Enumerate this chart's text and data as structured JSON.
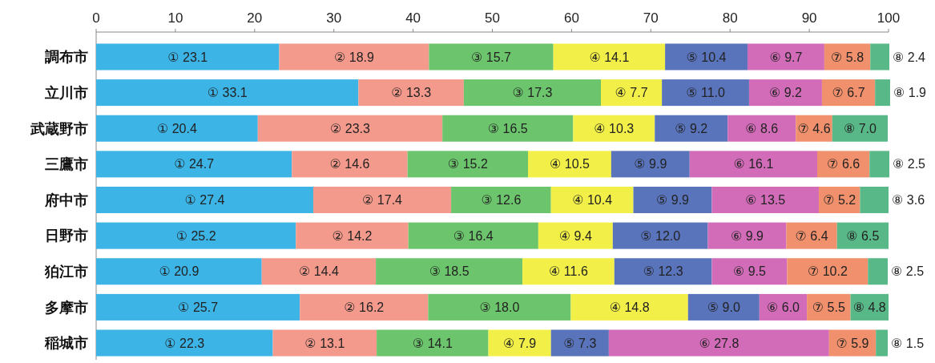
{
  "chart_data": {
    "type": "bar",
    "orientation": "horizontal",
    "stacked": true,
    "categories": [
      "調布市",
      "立川市",
      "武蔵野市",
      "三鷹市",
      "府中市",
      "日野市",
      "狛江市",
      "多摩市",
      "稲城市"
    ],
    "xlim": [
      0,
      100
    ],
    "xticks": [
      0,
      10,
      20,
      30,
      40,
      50,
      60,
      70,
      80,
      90,
      100
    ],
    "series": [
      {
        "color": "#3cb4e6",
        "values": [
          23.1,
          33.1,
          20.4,
          24.7,
          27.4,
          25.2,
          20.9,
          25.7,
          22.3
        ],
        "value_labels": [
          "① 23.1",
          "① 33.1",
          "① 20.4",
          "① 24.7",
          "① 27.4",
          "① 25.2",
          "① 20.9",
          "① 25.7",
          "① 22.3"
        ]
      },
      {
        "color": "#f39a8c",
        "values": [
          18.9,
          13.3,
          23.3,
          14.6,
          17.4,
          14.2,
          14.4,
          16.2,
          13.1
        ],
        "value_labels": [
          "② 18.9",
          "② 13.3",
          "② 23.3",
          "② 14.6",
          "② 17.4",
          "② 14.2",
          "② 14.4",
          "② 16.2",
          "② 13.1"
        ]
      },
      {
        "color": "#6cc46c",
        "values": [
          15.7,
          17.3,
          16.5,
          15.2,
          12.6,
          16.4,
          18.5,
          18.0,
          14.1
        ],
        "value_labels": [
          "③ 15.7",
          "③ 17.3",
          "③ 16.5",
          "③ 15.2",
          "③ 12.6",
          "③ 16.4",
          "③ 18.5",
          "③ 18.0",
          "③ 14.1"
        ]
      },
      {
        "color": "#f2f048",
        "values": [
          14.1,
          7.7,
          10.3,
          10.5,
          10.4,
          9.4,
          11.6,
          14.8,
          7.9
        ],
        "value_labels": [
          "④ 14.1",
          "④ 7.7",
          "④ 10.3",
          "④ 10.5",
          "④ 10.4",
          "④ 9.4",
          "④ 11.6",
          "④ 14.8",
          "④ 7.9"
        ]
      },
      {
        "color": "#5a74bc",
        "values": [
          10.4,
          11.0,
          9.2,
          9.9,
          9.9,
          12.0,
          12.3,
          9.0,
          7.3
        ],
        "value_labels": [
          "⑤ 10.4",
          "⑤ 11.0",
          "⑤ 9.2",
          "⑤ 9.9",
          "⑤ 9.9",
          "⑤ 12.0",
          "⑤ 12.3",
          "⑤ 9.0",
          "⑤ 7.3"
        ]
      },
      {
        "color": "#d26cb8",
        "values": [
          9.7,
          9.2,
          8.6,
          16.1,
          13.5,
          9.9,
          9.5,
          6.0,
          27.8
        ],
        "value_labels": [
          "⑥ 9.7",
          "⑥ 9.2",
          "⑥ 8.6",
          "⑥ 16.1",
          "⑥ 13.5",
          "⑥ 9.9",
          "⑥ 9.5",
          "⑥ 6.0",
          "⑥ 27.8"
        ]
      },
      {
        "color": "#f0906c",
        "values": [
          5.8,
          6.7,
          4.6,
          6.6,
          5.2,
          6.4,
          10.2,
          5.5,
          5.9
        ],
        "value_labels": [
          "⑦ 5.8",
          "⑦ 6.7",
          "⑦ 4.6",
          "⑦ 6.6",
          "⑦ 5.2",
          "⑦ 6.4",
          "⑦ 10.2",
          "⑦ 5.5",
          "⑦ 5.9"
        ]
      },
      {
        "color": "#58b888",
        "values": [
          2.4,
          1.9,
          7.0,
          2.5,
          3.6,
          6.5,
          2.5,
          4.8,
          1.5
        ],
        "value_labels": [
          "⑧ 2.4",
          "⑧ 1.9",
          "⑧ 7.0",
          "⑧ 2.5",
          "⑧ 3.6",
          "⑧ 6.5",
          "⑧ 2.5",
          "⑧ 4.8",
          "⑧ 1.5"
        ]
      }
    ]
  }
}
